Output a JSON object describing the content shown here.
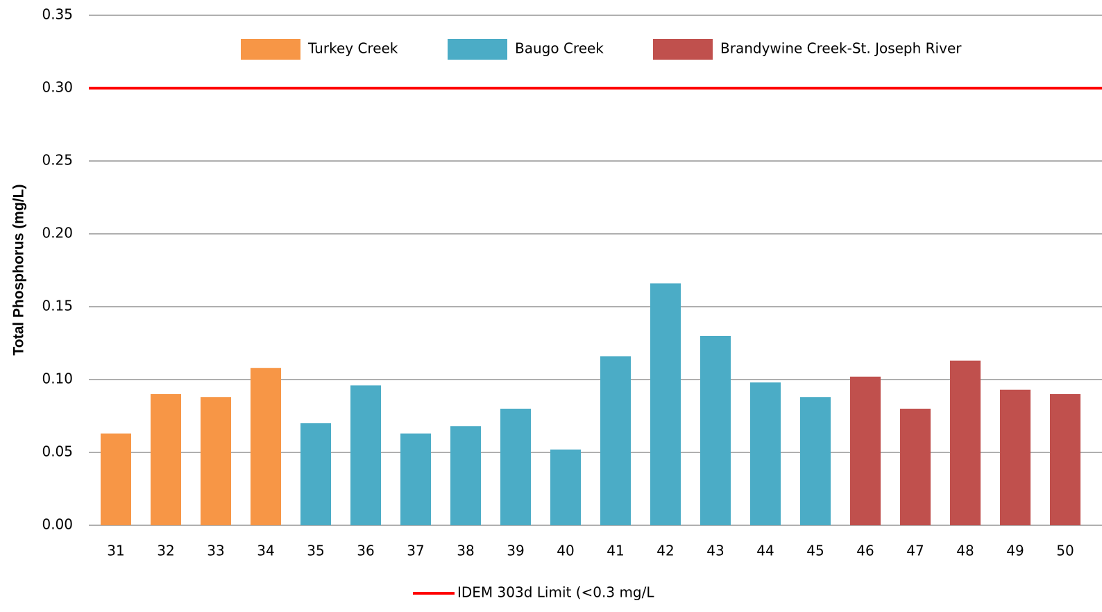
{
  "chart_data": {
    "type": "bar",
    "y_axis_label": "Total Phosphorus (mg/L)",
    "categories": [
      "31",
      "32",
      "33",
      "34",
      "35",
      "36",
      "37",
      "38",
      "39",
      "40",
      "41",
      "42",
      "43",
      "44",
      "45",
      "46",
      "47",
      "48",
      "49",
      "50"
    ],
    "series": [
      {
        "name": "Turkey Creek",
        "color": "#f79646",
        "values": [
          0.063,
          0.09,
          0.088,
          0.108,
          null,
          null,
          null,
          null,
          null,
          null,
          null,
          null,
          null,
          null,
          null,
          null,
          null,
          null,
          null,
          null
        ]
      },
      {
        "name": "Baugo Creek",
        "color": "#4bacc6",
        "values": [
          null,
          null,
          null,
          null,
          0.07,
          0.096,
          0.063,
          0.068,
          0.08,
          0.052,
          0.116,
          0.166,
          0.13,
          0.098,
          0.088,
          null,
          null,
          null,
          null,
          null
        ]
      },
      {
        "name": "Brandywine Creek-St. Joseph River",
        "color": "#c0504d",
        "values": [
          null,
          null,
          null,
          null,
          null,
          null,
          null,
          null,
          null,
          null,
          null,
          null,
          null,
          null,
          null,
          0.102,
          0.08,
          0.113,
          0.093,
          0.09
        ]
      }
    ],
    "reference_line": {
      "name": "IDEM 303d Limit (<0.3 mg/L",
      "value": 0.3,
      "color": "#ff0000"
    },
    "ylim": [
      0,
      0.35
    ],
    "yticks": [
      {
        "value": 0,
        "label": "0.00"
      },
      0.05,
      {
        "value": 0.1,
        "label": "0.10"
      },
      0.15,
      {
        "value": 0.2,
        "label": "0.20"
      },
      0.25,
      {
        "value": 0.3,
        "label": "0.30"
      },
      0.35
    ],
    "grid": true
  }
}
